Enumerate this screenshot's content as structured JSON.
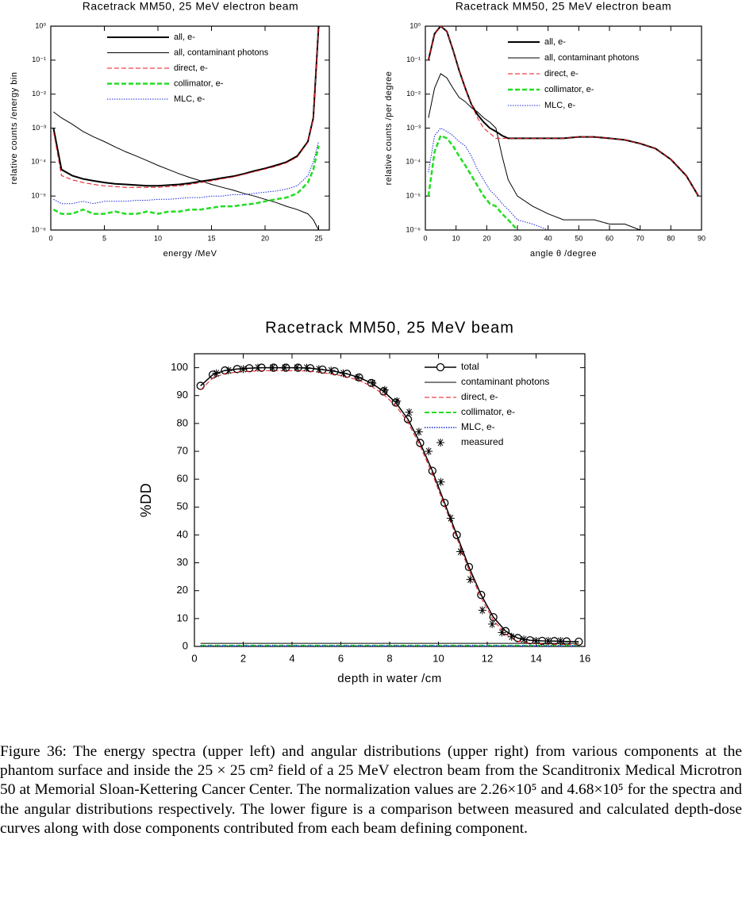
{
  "chart_data": [
    {
      "type": "line",
      "title": "Racetrack MM50, 25 MeV electron beam",
      "xlabel": "energy /MeV",
      "ylabel": "relative counts /energy bin",
      "log_y": true,
      "xlim": [
        0,
        26
      ],
      "xticks": [
        0,
        5,
        10,
        15,
        20,
        25
      ],
      "ylim": [
        1e-06,
        1
      ],
      "yticks": [
        {
          "value": 1,
          "label": "10⁰"
        },
        {
          "value": 0.1,
          "label": "10⁻¹"
        },
        {
          "value": 0.01,
          "label": "10⁻²"
        },
        {
          "value": 0.001,
          "label": "10⁻³"
        },
        {
          "value": 0.0001,
          "label": "10⁻⁴"
        },
        {
          "value": 1e-05,
          "label": "10⁻⁵"
        },
        {
          "value": 1e-06,
          "label": "10⁻⁶"
        }
      ],
      "x": [
        0.25,
        1,
        2,
        3,
        4,
        5,
        6,
        7,
        8,
        9,
        10,
        11,
        12,
        13,
        14,
        15,
        16,
        17,
        18,
        19,
        20,
        21,
        22,
        23,
        24,
        24.5,
        25
      ],
      "series": [
        {
          "name": "all, e-",
          "color": "#000000",
          "style": "solid",
          "width": 2,
          "values": [
            0.001,
            6e-05,
            4e-05,
            3.2e-05,
            2.8e-05,
            2.5e-05,
            2.3e-05,
            2.2e-05,
            2.1e-05,
            2e-05,
            2e-05,
            2.1e-05,
            2.2e-05,
            2.4e-05,
            2.7e-05,
            3e-05,
            3.4e-05,
            3.8e-05,
            4.5e-05,
            5.5e-05,
            6.5e-05,
            8e-05,
            0.0001,
            0.00015,
            0.0004,
            0.002,
            1
          ]
        },
        {
          "name": "all, contaminant photons",
          "color": "#000000",
          "style": "solid",
          "width": 1,
          "values": [
            0.003,
            0.002,
            0.0013,
            0.0008,
            0.00055,
            0.0004,
            0.00028,
            0.0002,
            0.00015,
            0.00011,
            8e-05,
            6e-05,
            4.5e-05,
            3.5e-05,
            2.8e-05,
            2.2e-05,
            1.8e-05,
            1.5e-05,
            1.2e-05,
            1e-05,
            8e-06,
            6.5e-06,
            5e-06,
            4e-06,
            3e-06,
            2e-06,
            1e-06
          ]
        },
        {
          "name": "direct, e-",
          "color": "#e8141c",
          "style": "dashed",
          "width": 1,
          "values": [
            0.0008,
            4e-05,
            3e-05,
            2.5e-05,
            2.2e-05,
            2e-05,
            1.9e-05,
            1.8e-05,
            1.8e-05,
            1.8e-05,
            1.8e-05,
            1.9e-05,
            2e-05,
            2.2e-05,
            2.5e-05,
            2.8e-05,
            3.2e-05,
            3.6e-05,
            4.3e-05,
            5.2e-05,
            6.2e-05,
            7.5e-05,
            9.5e-05,
            0.00014,
            0.00038,
            0.002,
            1
          ]
        },
        {
          "name": "collimator, e-",
          "color": "#22dd22",
          "style": "dashed",
          "width": 2.5,
          "values": [
            4e-06,
            3e-06,
            3e-06,
            4e-06,
            3e-06,
            3e-06,
            3.5e-06,
            3e-06,
            3e-06,
            3.5e-06,
            3e-06,
            3.5e-06,
            3.5e-06,
            4e-06,
            4e-06,
            4.5e-06,
            5e-06,
            5e-06,
            5.5e-06,
            6e-06,
            7e-06,
            8e-06,
            9e-06,
            1.2e-05,
            2.5e-05,
            6e-05,
            0.0003
          ]
        },
        {
          "name": "MLC, e-",
          "color": "#1a2ad8",
          "style": "dotted",
          "width": 1,
          "values": [
            8e-06,
            6e-06,
            6e-06,
            7e-06,
            6e-06,
            7e-06,
            7e-06,
            7e-06,
            7.5e-06,
            7.5e-06,
            8e-06,
            8e-06,
            8.5e-06,
            9e-06,
            9e-06,
            1e-05,
            1e-05,
            1.1e-05,
            1.1e-05,
            1.2e-05,
            1.3e-05,
            1.4e-05,
            1.6e-05,
            2e-05,
            4e-05,
            0.0001,
            0.0004
          ]
        }
      ]
    },
    {
      "type": "line",
      "title": "Racetrack MM50, 25 MeV electron beam",
      "xlabel": "angle θ /degree",
      "ylabel": "relative counts /per degree",
      "log_y": true,
      "xlim": [
        0,
        90
      ],
      "xticks": [
        0,
        10,
        20,
        30,
        40,
        50,
        60,
        70,
        80,
        90
      ],
      "ylim": [
        1e-06,
        1
      ],
      "yticks": [
        {
          "value": 1,
          "label": "10⁰"
        },
        {
          "value": 0.1,
          "label": "10⁻¹"
        },
        {
          "value": 0.01,
          "label": "10⁻²"
        },
        {
          "value": 0.001,
          "label": "10⁻³"
        },
        {
          "value": 0.0001,
          "label": "10⁻⁴"
        },
        {
          "value": 1e-05,
          "label": "10⁻⁵"
        },
        {
          "value": 1e-06,
          "label": "10⁻⁶"
        }
      ],
      "x": [
        1,
        3,
        5,
        7,
        9,
        11,
        13,
        15,
        17,
        19,
        21,
        23,
        25,
        27,
        30,
        35,
        40,
        45,
        50,
        55,
        60,
        65,
        70,
        75,
        80,
        85,
        89
      ],
      "series": [
        {
          "name": "all, e-",
          "color": "#000000",
          "style": "solid",
          "width": 2,
          "values": [
            0.1,
            0.6,
            1,
            0.7,
            0.2,
            0.05,
            0.015,
            0.005,
            0.0025,
            0.0015,
            0.001,
            0.0008,
            0.0006,
            0.0005,
            0.0005,
            0.0005,
            0.0005,
            0.0005,
            0.00055,
            0.00055,
            0.0005,
            0.00045,
            0.00035,
            0.00025,
            0.00012,
            4e-05,
            1e-05
          ]
        },
        {
          "name": "all, contaminant photons",
          "color": "#000000",
          "style": "solid",
          "width": 1,
          "values": [
            0.002,
            0.015,
            0.04,
            0.03,
            0.015,
            0.008,
            0.006,
            0.004,
            0.003,
            0.002,
            0.0015,
            0.001,
            0.00015,
            3e-05,
            1e-05,
            5e-06,
            3e-06,
            2e-06,
            2e-06,
            2e-06,
            1.5e-06,
            1.5e-06,
            1e-06,
            1e-06,
            1e-06,
            1e-06,
            null
          ]
        },
        {
          "name": "direct, e-",
          "color": "#e8141c",
          "style": "dashed",
          "width": 1,
          "values": [
            0.1,
            0.6,
            1,
            0.7,
            0.2,
            0.05,
            0.015,
            0.005,
            0.002,
            0.001,
            0.0007,
            0.0005,
            0.0005,
            0.0005,
            0.0005,
            0.0005,
            0.0005,
            0.0005,
            0.00055,
            0.00055,
            0.0005,
            0.00045,
            0.00035,
            0.00025,
            0.00012,
            4e-05,
            1e-05
          ]
        },
        {
          "name": "collimator, e-",
          "color": "#22dd22",
          "style": "dashed",
          "width": 2.5,
          "values": [
            1e-05,
            0.0002,
            0.0006,
            0.0005,
            0.0003,
            0.00015,
            8e-05,
            4e-05,
            2e-05,
            1e-05,
            6e-06,
            5e-06,
            3e-06,
            2e-06,
            1e-06,
            null,
            null,
            null,
            null,
            null,
            null,
            null,
            null,
            null,
            null,
            null,
            null
          ]
        },
        {
          "name": "MLC, e-",
          "color": "#1a2ad8",
          "style": "dotted",
          "width": 1,
          "values": [
            5e-05,
            0.0006,
            0.001,
            0.0008,
            0.0006,
            0.0004,
            0.0003,
            0.00015,
            6e-05,
            3e-05,
            1.5e-05,
            1e-05,
            6e-06,
            4e-06,
            2e-06,
            1.5e-06,
            1e-06,
            null,
            null,
            null,
            null,
            null,
            null,
            null,
            null,
            null,
            null
          ]
        }
      ]
    },
    {
      "type": "line",
      "title": "Racetrack MM50, 25 MeV beam",
      "xlabel": "depth in water /cm",
      "ylabel": "%DD",
      "log_y": false,
      "xlim": [
        0,
        16
      ],
      "xticks": [
        0,
        2,
        4,
        6,
        8,
        10,
        12,
        14,
        16
      ],
      "ylim": [
        0,
        105
      ],
      "yticks": [
        0,
        10,
        20,
        30,
        40,
        50,
        60,
        70,
        80,
        90,
        100
      ],
      "x": [
        0.25,
        0.75,
        1.25,
        1.75,
        2.25,
        2.75,
        3.25,
        3.75,
        4.25,
        4.75,
        5.25,
        5.75,
        6.25,
        6.75,
        7.25,
        7.75,
        8.25,
        8.75,
        9.25,
        9.75,
        10.25,
        10.75,
        11.25,
        11.75,
        12.25,
        12.75,
        13.25,
        13.75,
        14.25,
        14.75,
        15.25,
        15.75
      ],
      "series": [
        {
          "name": "total",
          "color": "#000000",
          "style": "solid",
          "width": 1.5,
          "marker": "circle",
          "values": [
            93.5,
            97.5,
            99,
            99.5,
            99.8,
            100,
            100,
            100,
            100,
            99.8,
            99.3,
            98.7,
            97.8,
            96.5,
            94.5,
            91.5,
            87.5,
            81.5,
            73,
            63,
            51.5,
            40,
            28.5,
            18.5,
            10.5,
            5.5,
            3,
            2.2,
            2,
            1.9,
            1.8,
            1.7
          ]
        },
        {
          "name": "contaminant photons",
          "color": "#000000",
          "style": "solid",
          "width": 1,
          "values": [
            1.1,
            1.1,
            1.1,
            1.1,
            1.1,
            1.1,
            1.1,
            1.1,
            1.1,
            1.1,
            1.1,
            1.1,
            1.1,
            1.1,
            1.1,
            1.1,
            1.1,
            1.1,
            1.1,
            1.1,
            1.1,
            1.1,
            1.1,
            1.1,
            1.1,
            1.1,
            1.1,
            1.1,
            1.1,
            1.1,
            1.1,
            1.1
          ]
        },
        {
          "name": "direct, e-",
          "color": "#e8141c",
          "style": "dashed",
          "width": 1,
          "values": [
            92,
            96.3,
            97.9,
            98.4,
            98.7,
            98.9,
            98.9,
            98.9,
            98.9,
            98.7,
            98.2,
            97.6,
            96.7,
            95.4,
            93.4,
            90.4,
            86.4,
            80.4,
            71.9,
            61.9,
            50.4,
            38.9,
            27.4,
            17.4,
            9.4,
            4.4,
            1.9,
            1.1,
            0.9,
            0.8,
            0.7,
            0.6
          ]
        },
        {
          "name": "collimator, e-",
          "color": "#22dd22",
          "style": "dashed",
          "width": 2,
          "values": [
            0.3,
            0.3,
            0.3,
            0.3,
            0.3,
            0.3,
            0.3,
            0.3,
            0.3,
            0.3,
            0.3,
            0.3,
            0.3,
            0.3,
            0.3,
            0.3,
            0.3,
            0.3,
            0.3,
            0.3,
            0.3,
            0.3,
            0.3,
            0.3,
            0.3,
            0.3,
            0.3,
            0.3,
            0.3,
            0.3,
            0.3,
            0.3
          ]
        },
        {
          "name": "MLC, e-",
          "color": "#1a2ad8",
          "style": "dotted",
          "width": 1.5,
          "values": [
            0.2,
            0.2,
            0.2,
            0.2,
            0.2,
            0.2,
            0.2,
            0.2,
            0.2,
            0.2,
            0.2,
            0.2,
            0.2,
            0.2,
            0.2,
            0.2,
            0.2,
            0.2,
            0.2,
            0.2,
            0.2,
            0.2,
            0.2,
            0.2,
            0.2,
            0.2,
            0.2,
            0.2,
            0.2,
            0.2,
            0.2,
            0.2
          ]
        },
        {
          "name": "measured",
          "color": "#000000",
          "style": "none",
          "width": 1,
          "marker": "star",
          "x": [
            0.9,
            1.4,
            2.0,
            2.6,
            3.2,
            3.7,
            4.2,
            4.6,
            5.1,
            5.6,
            6.1,
            6.7,
            7.3,
            7.8,
            8.3,
            8.8,
            9.2,
            9.6,
            10.1,
            10.5,
            10.9,
            11.3,
            11.8,
            12.2,
            12.6,
            13.0,
            13.5,
            14.0,
            14.5,
            15.0
          ],
          "values": [
            98,
            99,
            99.5,
            100,
            100,
            100,
            100,
            100,
            99.5,
            99,
            98,
            96.5,
            94.5,
            92,
            88,
            84,
            77,
            70,
            59,
            46,
            34,
            24,
            13,
            8,
            5,
            3.5,
            2.5,
            2,
            2,
            2
          ]
        }
      ]
    }
  ],
  "caption": "Figure 36: The energy spectra (upper left) and angular distributions (upper right) from various components at the phantom surface and inside the 25 × 25 cm² field of a 25 MeV electron beam from the Scanditronix Medical Microtron 50 at Memorial Sloan-Kettering Cancer Center. The normalization values are 2.26×10⁵ and 4.68×10⁵ for the spectra and the angular distributions respectively. The lower figure is a comparison between measured and calculated depth-dose curves along with dose components contributed from each beam defining component."
}
